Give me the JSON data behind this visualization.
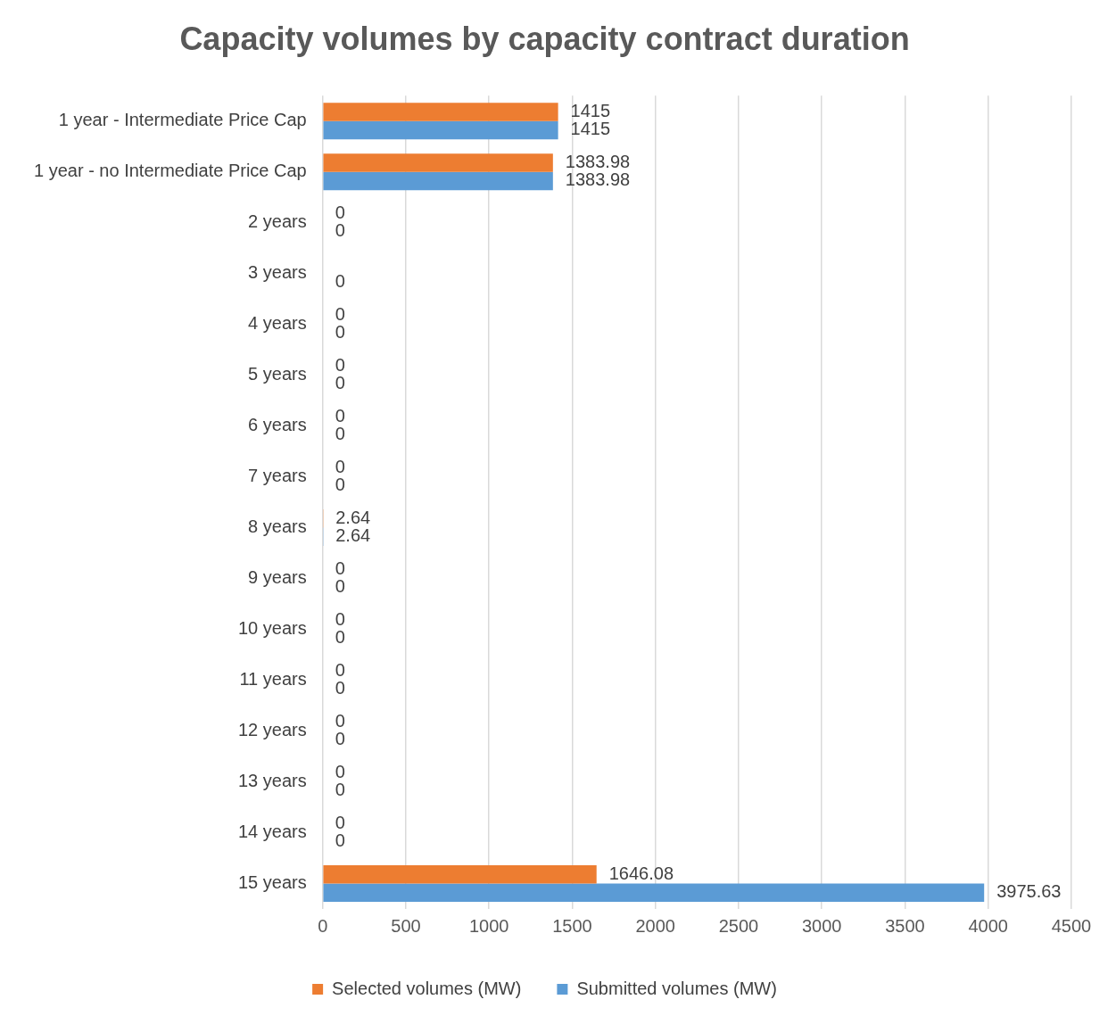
{
  "chart_data": {
    "type": "bar",
    "orientation": "horizontal",
    "title": "Capacity volumes by capacity contract duration",
    "categories": [
      "1 year - Intermediate Price Cap",
      "1 year - no Intermediate Price Cap",
      "2 years",
      "3 years",
      "4 years",
      "5 years",
      "6 years",
      "7 years",
      "8 years",
      "9 years",
      "10 years",
      "11 years",
      "12 years",
      "13 years",
      "14 years",
      "15 years"
    ],
    "series": [
      {
        "name": "Selected volumes (MW)",
        "color": "#ed7d31",
        "values": [
          1415,
          1383.98,
          0,
          null,
          0,
          0,
          0,
          0,
          2.64,
          0,
          0,
          0,
          0,
          0,
          0,
          1646.08
        ]
      },
      {
        "name": "Submitted volumes (MW)",
        "color": "#5b9bd5",
        "values": [
          1415,
          1383.98,
          0,
          0,
          0,
          0,
          0,
          0,
          2.64,
          0,
          0,
          0,
          0,
          0,
          0,
          3975.63
        ]
      }
    ],
    "xlim": [
      0,
      4500
    ],
    "xticks": [
      0,
      500,
      1000,
      1500,
      2000,
      2500,
      3000,
      3500,
      4000,
      4500
    ],
    "grid": "x",
    "legend": "bottom",
    "data_labels": true
  }
}
